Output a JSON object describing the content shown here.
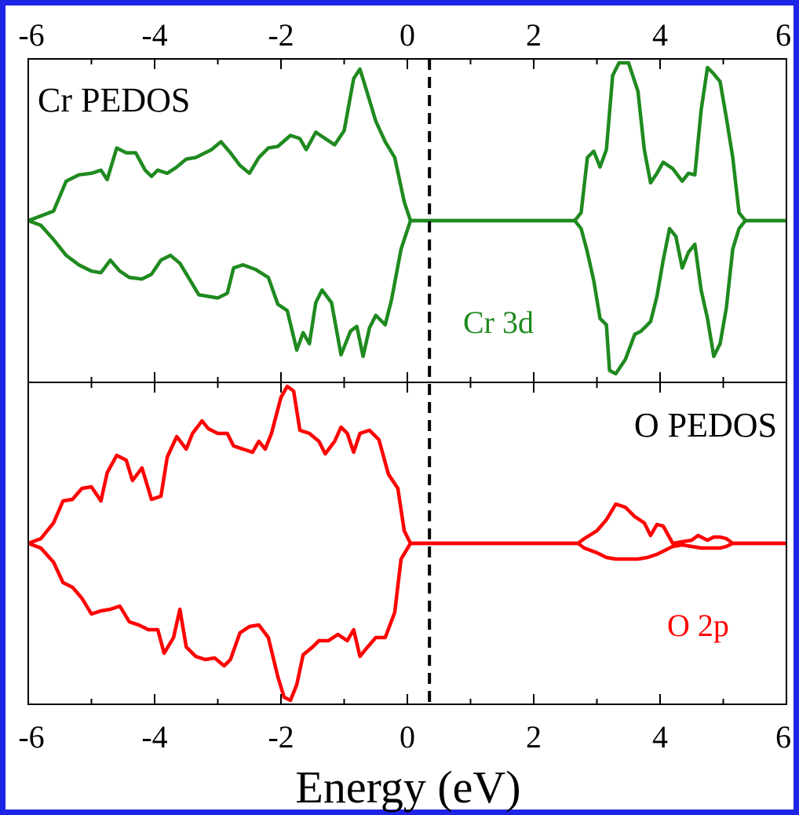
{
  "chart_data": {
    "type": "line",
    "xlabel": "Energy (eV)",
    "xlim": [
      -6,
      6
    ],
    "xticks": [
      -6,
      -4,
      -2,
      0,
      2,
      4,
      6
    ],
    "fermi_level": 0.35,
    "panels": [
      {
        "title": "Cr PEDOS",
        "series_label": "Cr 3d",
        "color": "#1f8a1f",
        "ylim": [
          -1,
          1
        ],
        "up": [
          [
            -6,
            0
          ],
          [
            -5.8,
            0.03
          ],
          [
            -5.6,
            0.06
          ],
          [
            -5.4,
            0.25
          ],
          [
            -5.2,
            0.29
          ],
          [
            -5.0,
            0.3
          ],
          [
            -4.85,
            0.32
          ],
          [
            -4.75,
            0.26
          ],
          [
            -4.6,
            0.46
          ],
          [
            -4.45,
            0.43
          ],
          [
            -4.3,
            0.43
          ],
          [
            -4.15,
            0.32
          ],
          [
            -4.05,
            0.28
          ],
          [
            -3.95,
            0.32
          ],
          [
            -3.8,
            0.3
          ],
          [
            -3.65,
            0.34
          ],
          [
            -3.5,
            0.39
          ],
          [
            -3.35,
            0.4
          ],
          [
            -3.2,
            0.43
          ],
          [
            -3.1,
            0.45
          ],
          [
            -2.95,
            0.5
          ],
          [
            -2.8,
            0.43
          ],
          [
            -2.65,
            0.35
          ],
          [
            -2.5,
            0.3
          ],
          [
            -2.35,
            0.4
          ],
          [
            -2.2,
            0.46
          ],
          [
            -2.05,
            0.47
          ],
          [
            -1.85,
            0.54
          ],
          [
            -1.7,
            0.52
          ],
          [
            -1.6,
            0.45
          ],
          [
            -1.45,
            0.56
          ],
          [
            -1.3,
            0.52
          ],
          [
            -1.15,
            0.48
          ],
          [
            -1.0,
            0.57
          ],
          [
            -0.85,
            0.9
          ],
          [
            -0.75,
            0.96
          ],
          [
            -0.65,
            0.83
          ],
          [
            -0.5,
            0.63
          ],
          [
            -0.35,
            0.5
          ],
          [
            -0.2,
            0.4
          ],
          [
            -0.05,
            0.12
          ],
          [
            0.05,
            0
          ],
          [
            2.65,
            0
          ],
          [
            2.75,
            0.05
          ],
          [
            2.85,
            0.4
          ],
          [
            2.95,
            0.44
          ],
          [
            3.05,
            0.34
          ],
          [
            3.15,
            0.45
          ],
          [
            3.25,
            0.92
          ],
          [
            3.35,
            1.0
          ],
          [
            3.5,
            1.0
          ],
          [
            3.65,
            0.82
          ],
          [
            3.75,
            0.45
          ],
          [
            3.85,
            0.24
          ],
          [
            3.95,
            0.3
          ],
          [
            4.05,
            0.37
          ],
          [
            4.2,
            0.33
          ],
          [
            4.35,
            0.25
          ],
          [
            4.45,
            0.3
          ],
          [
            4.55,
            0.29
          ],
          [
            4.65,
            0.7
          ],
          [
            4.75,
            0.97
          ],
          [
            4.85,
            0.93
          ],
          [
            4.95,
            0.88
          ],
          [
            5.05,
            0.65
          ],
          [
            5.15,
            0.4
          ],
          [
            5.25,
            0.05
          ],
          [
            5.35,
            0
          ],
          [
            6,
            0
          ]
        ],
        "down": [
          [
            -6,
            0
          ],
          [
            -5.8,
            -0.03
          ],
          [
            -5.6,
            -0.12
          ],
          [
            -5.4,
            -0.22
          ],
          [
            -5.2,
            -0.28
          ],
          [
            -5.0,
            -0.32
          ],
          [
            -4.85,
            -0.33
          ],
          [
            -4.7,
            -0.25
          ],
          [
            -4.55,
            -0.32
          ],
          [
            -4.4,
            -0.36
          ],
          [
            -4.2,
            -0.37
          ],
          [
            -4.05,
            -0.34
          ],
          [
            -3.9,
            -0.25
          ],
          [
            -3.75,
            -0.22
          ],
          [
            -3.6,
            -0.27
          ],
          [
            -3.45,
            -0.37
          ],
          [
            -3.3,
            -0.47
          ],
          [
            -3.15,
            -0.48
          ],
          [
            -3.0,
            -0.49
          ],
          [
            -2.85,
            -0.46
          ],
          [
            -2.75,
            -0.3
          ],
          [
            -2.6,
            -0.28
          ],
          [
            -2.4,
            -0.31
          ],
          [
            -2.2,
            -0.36
          ],
          [
            -2.05,
            -0.53
          ],
          [
            -1.9,
            -0.57
          ],
          [
            -1.75,
            -0.82
          ],
          [
            -1.65,
            -0.71
          ],
          [
            -1.55,
            -0.78
          ],
          [
            -1.45,
            -0.52
          ],
          [
            -1.35,
            -0.44
          ],
          [
            -1.2,
            -0.52
          ],
          [
            -1.05,
            -0.85
          ],
          [
            -0.9,
            -0.7
          ],
          [
            -0.8,
            -0.67
          ],
          [
            -0.7,
            -0.86
          ],
          [
            -0.6,
            -0.68
          ],
          [
            -0.5,
            -0.6
          ],
          [
            -0.35,
            -0.66
          ],
          [
            -0.25,
            -0.5
          ],
          [
            -0.1,
            -0.18
          ],
          [
            0.05,
            0
          ],
          [
            2.65,
            0
          ],
          [
            2.75,
            -0.05
          ],
          [
            2.85,
            -0.2
          ],
          [
            2.95,
            -0.38
          ],
          [
            3.05,
            -0.62
          ],
          [
            3.15,
            -0.66
          ],
          [
            3.2,
            -0.95
          ],
          [
            3.3,
            -0.97
          ],
          [
            3.45,
            -0.88
          ],
          [
            3.6,
            -0.72
          ],
          [
            3.7,
            -0.7
          ],
          [
            3.85,
            -0.64
          ],
          [
            3.95,
            -0.48
          ],
          [
            4.05,
            -0.25
          ],
          [
            4.15,
            -0.05
          ],
          [
            4.25,
            -0.1
          ],
          [
            4.35,
            -0.3
          ],
          [
            4.45,
            -0.2
          ],
          [
            4.55,
            -0.15
          ],
          [
            4.65,
            -0.44
          ],
          [
            4.75,
            -0.62
          ],
          [
            4.85,
            -0.86
          ],
          [
            4.95,
            -0.78
          ],
          [
            5.05,
            -0.55
          ],
          [
            5.15,
            -0.18
          ],
          [
            5.25,
            -0.05
          ],
          [
            5.35,
            0
          ],
          [
            6,
            0
          ]
        ]
      },
      {
        "title": "O PEDOS",
        "series_label": "O 2p",
        "color": "#ff0000",
        "ylim": [
          -1,
          1
        ],
        "up": [
          [
            -6,
            0
          ],
          [
            -5.8,
            0.03
          ],
          [
            -5.6,
            0.13
          ],
          [
            -5.45,
            0.27
          ],
          [
            -5.3,
            0.28
          ],
          [
            -5.15,
            0.35
          ],
          [
            -5.0,
            0.36
          ],
          [
            -4.85,
            0.27
          ],
          [
            -4.75,
            0.45
          ],
          [
            -4.6,
            0.56
          ],
          [
            -4.45,
            0.53
          ],
          [
            -4.35,
            0.4
          ],
          [
            -4.2,
            0.48
          ],
          [
            -4.05,
            0.28
          ],
          [
            -3.9,
            0.3
          ],
          [
            -3.8,
            0.55
          ],
          [
            -3.65,
            0.68
          ],
          [
            -3.5,
            0.6
          ],
          [
            -3.4,
            0.7
          ],
          [
            -3.25,
            0.78
          ],
          [
            -3.15,
            0.73
          ],
          [
            -3.0,
            0.7
          ],
          [
            -2.85,
            0.7
          ],
          [
            -2.75,
            0.62
          ],
          [
            -2.6,
            0.6
          ],
          [
            -2.45,
            0.58
          ],
          [
            -2.35,
            0.65
          ],
          [
            -2.25,
            0.6
          ],
          [
            -2.15,
            0.7
          ],
          [
            -2.0,
            0.93
          ],
          [
            -1.9,
            1.0
          ],
          [
            -1.8,
            0.97
          ],
          [
            -1.7,
            0.72
          ],
          [
            -1.55,
            0.7
          ],
          [
            -1.4,
            0.65
          ],
          [
            -1.3,
            0.57
          ],
          [
            -1.15,
            0.65
          ],
          [
            -1.05,
            0.74
          ],
          [
            -0.95,
            0.7
          ],
          [
            -0.85,
            0.58
          ],
          [
            -0.75,
            0.7
          ],
          [
            -0.6,
            0.72
          ],
          [
            -0.45,
            0.66
          ],
          [
            -0.3,
            0.44
          ],
          [
            -0.15,
            0.35
          ],
          [
            -0.05,
            0.08
          ],
          [
            0.05,
            0
          ],
          [
            2.7,
            0
          ],
          [
            2.8,
            0.03
          ],
          [
            3.0,
            0.08
          ],
          [
            3.15,
            0.15
          ],
          [
            3.3,
            0.25
          ],
          [
            3.45,
            0.23
          ],
          [
            3.6,
            0.17
          ],
          [
            3.75,
            0.13
          ],
          [
            3.85,
            0.05
          ],
          [
            3.95,
            0.12
          ],
          [
            4.05,
            0.11
          ],
          [
            4.2,
            0.0
          ],
          [
            4.35,
            0.01
          ],
          [
            4.5,
            0.02
          ],
          [
            4.6,
            0.05
          ],
          [
            4.75,
            0.02
          ],
          [
            4.85,
            0.04
          ],
          [
            4.95,
            0.04
          ],
          [
            5.05,
            0.03
          ],
          [
            5.15,
            0.0
          ],
          [
            5.25,
            0.0
          ],
          [
            6,
            0
          ]
        ],
        "down": [
          [
            -6,
            0
          ],
          [
            -5.8,
            -0.03
          ],
          [
            -5.6,
            -0.12
          ],
          [
            -5.45,
            -0.25
          ],
          [
            -5.3,
            -0.28
          ],
          [
            -5.15,
            -0.35
          ],
          [
            -5.0,
            -0.45
          ],
          [
            -4.85,
            -0.43
          ],
          [
            -4.7,
            -0.42
          ],
          [
            -4.55,
            -0.4
          ],
          [
            -4.4,
            -0.5
          ],
          [
            -4.25,
            -0.52
          ],
          [
            -4.1,
            -0.55
          ],
          [
            -3.95,
            -0.55
          ],
          [
            -3.85,
            -0.7
          ],
          [
            -3.7,
            -0.6
          ],
          [
            -3.6,
            -0.42
          ],
          [
            -3.5,
            -0.66
          ],
          [
            -3.35,
            -0.72
          ],
          [
            -3.2,
            -0.74
          ],
          [
            -3.05,
            -0.73
          ],
          [
            -2.9,
            -0.78
          ],
          [
            -2.8,
            -0.74
          ],
          [
            -2.65,
            -0.57
          ],
          [
            -2.5,
            -0.53
          ],
          [
            -2.35,
            -0.52
          ],
          [
            -2.2,
            -0.6
          ],
          [
            -2.05,
            -0.85
          ],
          [
            -1.95,
            -0.98
          ],
          [
            -1.85,
            -1.0
          ],
          [
            -1.75,
            -0.9
          ],
          [
            -1.65,
            -0.71
          ],
          [
            -1.5,
            -0.66
          ],
          [
            -1.4,
            -0.62
          ],
          [
            -1.25,
            -0.62
          ],
          [
            -1.1,
            -0.58
          ],
          [
            -0.95,
            -0.62
          ],
          [
            -0.85,
            -0.55
          ],
          [
            -0.75,
            -0.72
          ],
          [
            -0.65,
            -0.67
          ],
          [
            -0.5,
            -0.6
          ],
          [
            -0.35,
            -0.6
          ],
          [
            -0.2,
            -0.44
          ],
          [
            -0.1,
            -0.1
          ],
          [
            0.05,
            0
          ],
          [
            2.7,
            0
          ],
          [
            2.8,
            -0.03
          ],
          [
            3.0,
            -0.06
          ],
          [
            3.15,
            -0.09
          ],
          [
            3.3,
            -0.1
          ],
          [
            3.5,
            -0.1
          ],
          [
            3.65,
            -0.1
          ],
          [
            3.8,
            -0.09
          ],
          [
            3.95,
            -0.07
          ],
          [
            4.05,
            -0.05
          ],
          [
            4.2,
            -0.02
          ],
          [
            4.35,
            -0.01
          ],
          [
            4.5,
            -0.02
          ],
          [
            4.65,
            -0.03
          ],
          [
            4.8,
            -0.03
          ],
          [
            4.95,
            -0.03
          ],
          [
            5.05,
            -0.02
          ],
          [
            5.15,
            0.0
          ],
          [
            5.25,
            0.0
          ],
          [
            6,
            0
          ]
        ]
      }
    ]
  }
}
